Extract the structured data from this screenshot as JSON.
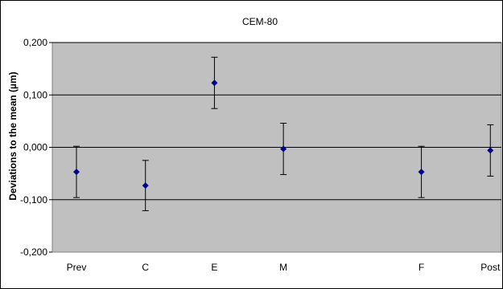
{
  "chart_data": {
    "type": "scatter",
    "title": "CEM-80",
    "xlabel": "",
    "ylabel": "Deviations to the mean (µm)",
    "categories": [
      "Prev",
      "C",
      "E",
      "M",
      "F",
      "Post"
    ],
    "x_positions": [
      1,
      2,
      3,
      4,
      6,
      7
    ],
    "xlim": [
      0.65,
      7.16
    ],
    "ylim": [
      -0.2,
      0.2
    ],
    "y_ticks": [
      0.2,
      0.1,
      0.0,
      -0.1,
      -0.2
    ],
    "y_tick_labels": [
      "0,200",
      "0,100",
      "0,000",
      "-0,100",
      "-0,200"
    ],
    "series": [
      {
        "values": [
          -0.047,
          -0.073,
          0.123,
          -0.003,
          -0.047,
          -0.006
        ],
        "error": [
          0.049,
          0.048,
          0.049,
          0.049,
          0.049,
          0.049
        ]
      }
    ],
    "grid": true,
    "colors": {
      "plot_bg": "#c0c0c0",
      "marker": "#00008b",
      "line": "#000000"
    }
  }
}
